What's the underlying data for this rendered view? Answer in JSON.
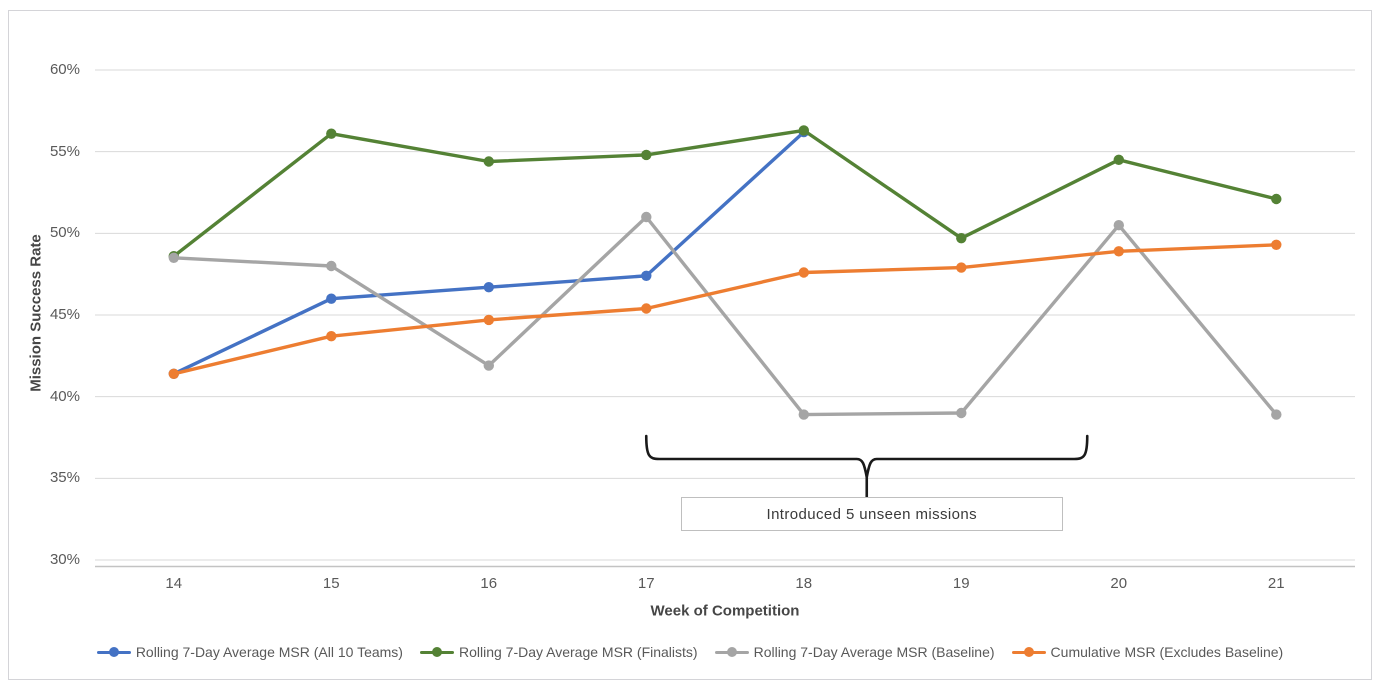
{
  "chart_data": {
    "type": "line",
    "xlabel": "Week of Competition",
    "ylabel": "Mission Success Rate",
    "x": [
      14,
      15,
      16,
      17,
      18,
      19,
      20,
      21
    ],
    "ylim": [
      30,
      60
    ],
    "y_ticks": [
      "60%",
      "55%",
      "50%",
      "45%",
      "40%",
      "35%",
      "30%"
    ],
    "grid": true,
    "legend_position": "bottom",
    "series": [
      {
        "name": "Rolling 7-Day Average MSR (All 10 Teams)",
        "color": "#4472C4",
        "values": [
          41.4,
          46.0,
          46.7,
          47.4,
          56.2,
          null,
          null,
          null
        ]
      },
      {
        "name": "Rolling 7-Day Average MSR (Finalists)",
        "color": "#548235",
        "values": [
          48.6,
          56.1,
          54.4,
          54.8,
          56.3,
          49.7,
          54.5,
          52.1
        ]
      },
      {
        "name": "Rolling 7-Day Average MSR (Baseline)",
        "color": "#A5A5A5",
        "values": [
          48.5,
          48.0,
          41.9,
          51.0,
          38.9,
          39.0,
          50.5,
          38.9
        ]
      },
      {
        "name": "Cumulative MSR (Excludes Baseline)",
        "color": "#ED7D31",
        "values": [
          41.4,
          43.7,
          44.7,
          45.4,
          47.6,
          47.9,
          48.9,
          49.3
        ]
      }
    ],
    "annotation": {
      "text": "Introduced 5 unseen missions",
      "brace_from_week": 17,
      "brace_to_week": 19.8,
      "brace_color": "#1a1a1a"
    }
  }
}
